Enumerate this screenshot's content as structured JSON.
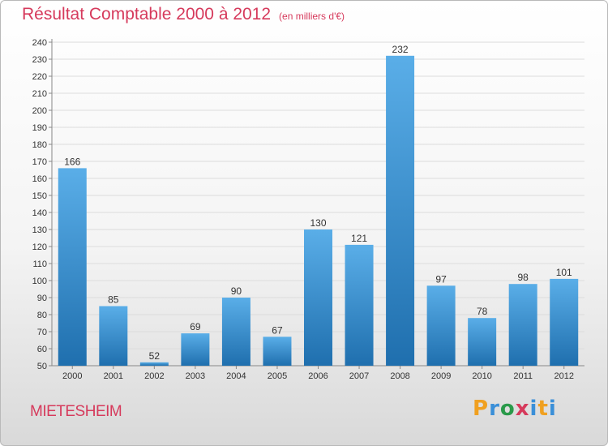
{
  "header": {
    "title": "Résultat Comptable 2000 à 2012",
    "subtitle": "(en milliers d'€)"
  },
  "footer": {
    "commune": "MIETESHEIM",
    "brand_letters": [
      "P",
      "r",
      "o",
      "x",
      "i",
      "t",
      "i"
    ]
  },
  "colors": {
    "accent": "#d63a5c",
    "bar_top": "#5aaee8",
    "bar_bottom": "#1f6fae",
    "brand": [
      "#f0a020",
      "#3a8fd8",
      "#2a9a4a",
      "#d63a5c",
      "#3a8fd8",
      "#f0a020",
      "#3a8fd8"
    ]
  },
  "chart_data": {
    "type": "bar",
    "title": "Résultat Comptable 2000 à 2012",
    "subtitle": "(en milliers d'€)",
    "categories": [
      "2000",
      "2001",
      "2002",
      "2003",
      "2004",
      "2005",
      "2006",
      "2007",
      "2008",
      "2009",
      "2010",
      "2011",
      "2012"
    ],
    "values": [
      166,
      85,
      52,
      69,
      90,
      67,
      130,
      121,
      232,
      97,
      78,
      98,
      101
    ],
    "value_labels": [
      "166",
      "85",
      "52",
      "69",
      "90",
      "67",
      "130",
      "121",
      "232",
      "97",
      "78",
      "98",
      "101"
    ],
    "ylim": [
      50,
      240
    ],
    "yticks": [
      "50",
      "60",
      "70",
      "80",
      "90",
      "100",
      "110",
      "120",
      "130",
      "140",
      "150",
      "160",
      "170",
      "180",
      "190",
      "200",
      "210",
      "220",
      "230",
      "240"
    ],
    "grid": true,
    "xlabel": "",
    "ylabel": ""
  }
}
